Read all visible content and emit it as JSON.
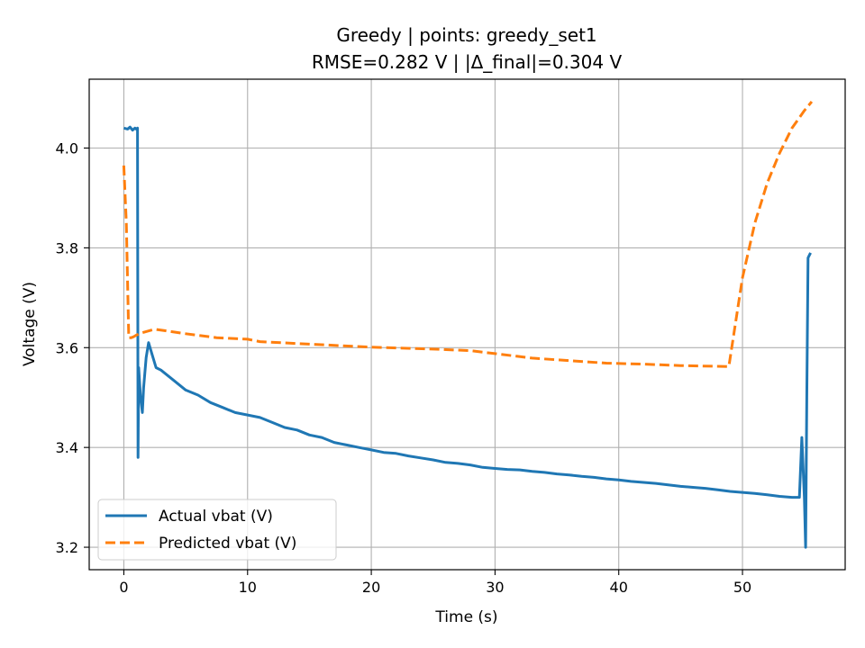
{
  "chart_data": {
    "type": "line",
    "title": "Greedy | points: greedy_set1",
    "subtitle": "RMSE=0.282 V | |Δ_final|=0.304 V",
    "xlabel": "Time (s)",
    "ylabel": "Voltage (V)",
    "xlim": [
      -2.8,
      58.3
    ],
    "ylim": [
      3.155,
      4.138
    ],
    "xticks": [
      0,
      10,
      20,
      30,
      40,
      50
    ],
    "yticks": [
      3.2,
      3.4,
      3.6,
      3.8,
      4.0
    ],
    "xtick_labels": [
      "0",
      "10",
      "20",
      "30",
      "40",
      "50"
    ],
    "ytick_labels": [
      "3.2",
      "3.4",
      "3.6",
      "3.8",
      "4.0"
    ],
    "grid": true,
    "legend": "lower-left",
    "series": [
      {
        "name": "Actual vbat (V)",
        "color": "#1f77b4",
        "style": "solid",
        "x": [
          0,
          0.3,
          0.5,
          0.7,
          0.9,
          1.0,
          1.1,
          1.15,
          1.2,
          1.35,
          1.5,
          1.6,
          1.8,
          2.0,
          2.3,
          2.6,
          3.0,
          4.0,
          5.0,
          6.0,
          7.0,
          8.0,
          9.0,
          10.0,
          11.0,
          12.0,
          13.0,
          14.0,
          15.0,
          16.0,
          17.0,
          18.0,
          19.0,
          20.0,
          21.0,
          22.0,
          23.0,
          24.0,
          25.0,
          26.0,
          27.0,
          28.0,
          29.0,
          30.0,
          31.0,
          32.0,
          33.0,
          34.0,
          35.0,
          36.0,
          37.0,
          38.0,
          39.0,
          40.0,
          41.0,
          42.0,
          43.0,
          44.0,
          45.0,
          46.0,
          47.0,
          48.0,
          49.0,
          50.0,
          51.0,
          52.0,
          53.0,
          54.0,
          54.6,
          54.8,
          55.0,
          55.1,
          55.2,
          55.3,
          55.4,
          55.5
        ],
        "y": [
          4.04,
          4.038,
          4.042,
          4.036,
          4.04,
          4.038,
          4.04,
          3.38,
          3.56,
          3.5,
          3.47,
          3.52,
          3.58,
          3.61,
          3.585,
          3.56,
          3.555,
          3.535,
          3.515,
          3.505,
          3.49,
          3.48,
          3.47,
          3.465,
          3.46,
          3.45,
          3.44,
          3.435,
          3.425,
          3.42,
          3.41,
          3.405,
          3.4,
          3.395,
          3.39,
          3.388,
          3.383,
          3.379,
          3.375,
          3.37,
          3.368,
          3.365,
          3.36,
          3.358,
          3.356,
          3.355,
          3.352,
          3.35,
          3.347,
          3.345,
          3.342,
          3.34,
          3.337,
          3.335,
          3.332,
          3.33,
          3.328,
          3.325,
          3.322,
          3.32,
          3.318,
          3.315,
          3.312,
          3.31,
          3.308,
          3.305,
          3.302,
          3.3,
          3.3,
          3.42,
          3.3,
          3.2,
          3.5,
          3.78,
          3.785,
          3.79
        ]
      },
      {
        "name": "Predicted vbat (V)",
        "color": "#ff7f0e",
        "style": "dashed",
        "x": [
          0,
          0.2,
          0.4,
          0.6,
          0.8,
          1.0,
          1.5,
          2.5,
          5.0,
          7.5,
          10.0,
          11.0,
          15.0,
          20.0,
          25.0,
          28.0,
          30.0,
          33.0,
          36.0,
          39.0,
          42.0,
          45.0,
          48.9,
          49.5,
          50.0,
          51.0,
          52.0,
          53.0,
          54.0,
          55.0,
          55.6
        ],
        "y": [
          3.965,
          3.85,
          3.62,
          3.62,
          3.622,
          3.625,
          3.63,
          3.637,
          3.628,
          3.62,
          3.617,
          3.612,
          3.607,
          3.601,
          3.597,
          3.594,
          3.588,
          3.579,
          3.574,
          3.569,
          3.567,
          3.564,
          3.562,
          3.66,
          3.74,
          3.85,
          3.93,
          3.99,
          4.04,
          4.075,
          4.093
        ]
      }
    ]
  }
}
